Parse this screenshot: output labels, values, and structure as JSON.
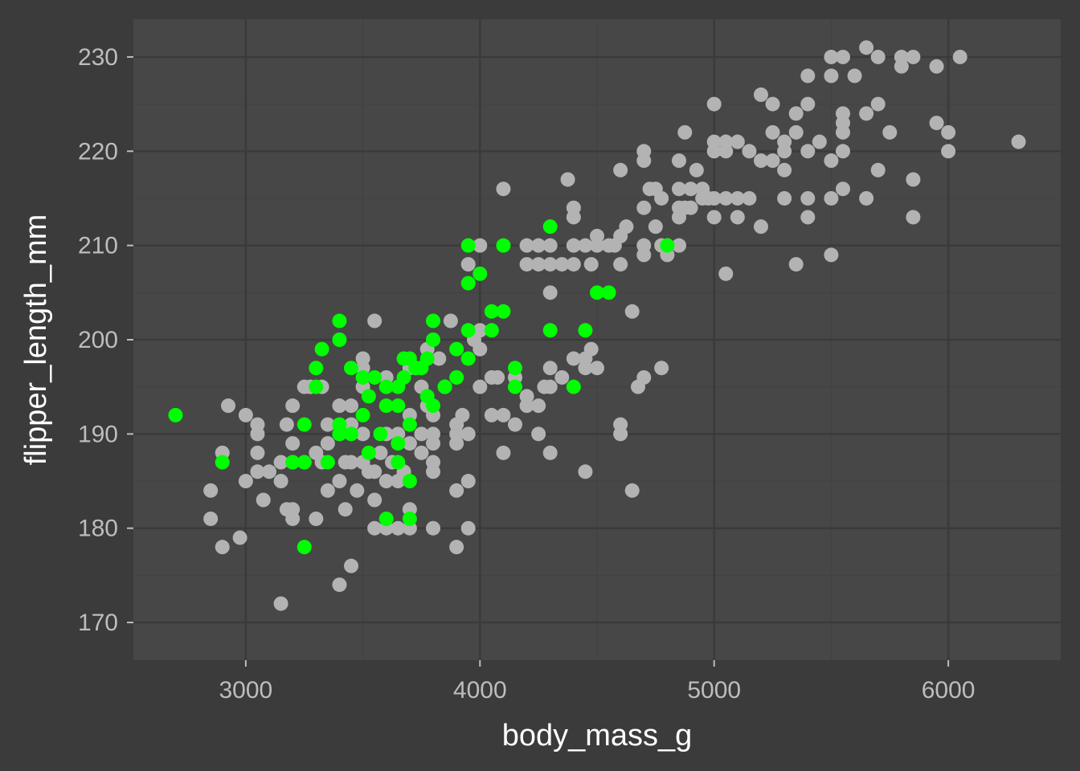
{
  "chart_data": {
    "type": "scatter",
    "xlabel": "body_mass_g",
    "ylabel": "flipper_length_mm",
    "xlim": [
      2520,
      6480
    ],
    "ylim": [
      166,
      234
    ],
    "x_ticks": [
      3000,
      4000,
      5000,
      6000
    ],
    "x_tick_labels": [
      "3000",
      "4000",
      "5000",
      "6000"
    ],
    "y_ticks": [
      170,
      180,
      190,
      200,
      210,
      220,
      230
    ],
    "y_tick_labels": [
      "170",
      "180",
      "190",
      "200",
      "210",
      "220",
      "230"
    ],
    "grid": true,
    "legend": "none",
    "colors": {
      "background": "#3b3b3b",
      "panel": "#474747",
      "grid_major": "#3a3a3a",
      "grid_minor": "#424242",
      "tick": "#bdbdbd",
      "axis_title": "#ffffff",
      "base_points": "#b3b3b3",
      "highlight_points": "#00ff00"
    },
    "series": [
      {
        "color": "#b3b3b3",
        "points": [
          [
            2850,
            184
          ],
          [
            2850,
            181
          ],
          [
            2900,
            188
          ],
          [
            2900,
            178
          ],
          [
            2925,
            193
          ],
          [
            2975,
            179
          ],
          [
            3000,
            192
          ],
          [
            3000,
            185
          ],
          [
            3050,
            191
          ],
          [
            3050,
            190
          ],
          [
            3050,
            188
          ],
          [
            3050,
            186
          ],
          [
            3075,
            183
          ],
          [
            3100,
            186
          ],
          [
            3150,
            187
          ],
          [
            3150,
            185
          ],
          [
            3150,
            172
          ],
          [
            3175,
            182
          ],
          [
            3175,
            191
          ],
          [
            3200,
            182
          ],
          [
            3200,
            181
          ],
          [
            3200,
            187
          ],
          [
            3200,
            189
          ],
          [
            3200,
            193
          ],
          [
            3250,
            195
          ],
          [
            3250,
            187
          ],
          [
            3275,
            195
          ],
          [
            3300,
            188
          ],
          [
            3300,
            181
          ],
          [
            3325,
            187
          ],
          [
            3325,
            195
          ],
          [
            3350,
            184
          ],
          [
            3350,
            189
          ],
          [
            3350,
            191
          ],
          [
            3400,
            193
          ],
          [
            3400,
            190
          ],
          [
            3400,
            185
          ],
          [
            3400,
            174
          ],
          [
            3425,
            187
          ],
          [
            3425,
            182
          ],
          [
            3450,
            176
          ],
          [
            3450,
            193
          ],
          [
            3450,
            191
          ],
          [
            3450,
            187
          ],
          [
            3475,
            184
          ],
          [
            3500,
            198
          ],
          [
            3500,
            197
          ],
          [
            3500,
            195
          ],
          [
            3500,
            190
          ],
          [
            3500,
            187
          ],
          [
            3525,
            186
          ],
          [
            3550,
            183
          ],
          [
            3550,
            186
          ],
          [
            3550,
            180
          ],
          [
            3550,
            202
          ],
          [
            3575,
            188
          ],
          [
            3600,
            180
          ],
          [
            3600,
            185
          ],
          [
            3600,
            190
          ],
          [
            3600,
            196
          ],
          [
            3625,
            187
          ],
          [
            3650,
            190
          ],
          [
            3650,
            185
          ],
          [
            3650,
            180
          ],
          [
            3675,
            186
          ],
          [
            3700,
            180
          ],
          [
            3700,
            182
          ],
          [
            3700,
            189
          ],
          [
            3700,
            192
          ],
          [
            3700,
            197
          ],
          [
            3725,
            197
          ],
          [
            3750,
            195
          ],
          [
            3750,
            188
          ],
          [
            3750,
            190
          ],
          [
            3775,
            193
          ],
          [
            3775,
            199
          ],
          [
            3800,
            192
          ],
          [
            3800,
            190
          ],
          [
            3800,
            189
          ],
          [
            3800,
            187
          ],
          [
            3800,
            186
          ],
          [
            3800,
            180
          ],
          [
            3825,
            198
          ],
          [
            3850,
            195
          ],
          [
            3875,
            202
          ],
          [
            3900,
            191
          ],
          [
            3900,
            190
          ],
          [
            3900,
            189
          ],
          [
            3900,
            184
          ],
          [
            3900,
            178
          ],
          [
            3925,
            192
          ],
          [
            3950,
            208
          ],
          [
            3950,
            190
          ],
          [
            3950,
            185
          ],
          [
            3950,
            180
          ],
          [
            3975,
            200
          ],
          [
            4000,
            210
          ],
          [
            4000,
            201
          ],
          [
            4000,
            199
          ],
          [
            4000,
            195
          ],
          [
            4050,
            196
          ],
          [
            4050,
            192
          ],
          [
            4075,
            196
          ],
          [
            4100,
            216
          ],
          [
            4100,
            192
          ],
          [
            4100,
            188
          ],
          [
            4150,
            191
          ],
          [
            4150,
            196
          ],
          [
            4200,
            210
          ],
          [
            4200,
            208
          ],
          [
            4200,
            194
          ],
          [
            4200,
            193
          ],
          [
            4250,
            193
          ],
          [
            4250,
            208
          ],
          [
            4250,
            210
          ],
          [
            4250,
            190
          ],
          [
            4275,
            195
          ],
          [
            4300,
            210
          ],
          [
            4300,
            208
          ],
          [
            4300,
            205
          ],
          [
            4300,
            195
          ],
          [
            4300,
            188
          ],
          [
            4300,
            197
          ],
          [
            4350,
            208
          ],
          [
            4350,
            196
          ],
          [
            4400,
            213
          ],
          [
            4400,
            210
          ],
          [
            4400,
            208
          ],
          [
            4400,
            198
          ],
          [
            4400,
            214
          ],
          [
            4375,
            217
          ],
          [
            4450,
            210
          ],
          [
            4450,
            198
          ],
          [
            4450,
            197
          ],
          [
            4450,
            186
          ],
          [
            4475,
            208
          ],
          [
            4475,
            199
          ],
          [
            4500,
            211
          ],
          [
            4500,
            210
          ],
          [
            4500,
            197
          ],
          [
            4550,
            210
          ],
          [
            4575,
            210
          ],
          [
            4600,
            218
          ],
          [
            4600,
            211
          ],
          [
            4600,
            208
          ],
          [
            4600,
            191
          ],
          [
            4600,
            190
          ],
          [
            4625,
            212
          ],
          [
            4650,
            203
          ],
          [
            4650,
            184
          ],
          [
            4675,
            195
          ],
          [
            4700,
            210
          ],
          [
            4700,
            209
          ],
          [
            4700,
            214
          ],
          [
            4700,
            220
          ],
          [
            4700,
            219
          ],
          [
            4700,
            196
          ],
          [
            4725,
            216
          ],
          [
            4750,
            212
          ],
          [
            4750,
            216
          ],
          [
            4775,
            210
          ],
          [
            4775,
            215
          ],
          [
            4775,
            197
          ],
          [
            4800,
            210
          ],
          [
            4800,
            209
          ],
          [
            4850,
            216
          ],
          [
            4850,
            214
          ],
          [
            4850,
            213
          ],
          [
            4850,
            210
          ],
          [
            4850,
            219
          ],
          [
            4875,
            214
          ],
          [
            4875,
            222
          ],
          [
            4900,
            214
          ],
          [
            4900,
            216
          ],
          [
            4925,
            218
          ],
          [
            4950,
            216
          ],
          [
            4950,
            215
          ],
          [
            4975,
            215
          ],
          [
            5000,
            221
          ],
          [
            5000,
            220
          ],
          [
            5000,
            215
          ],
          [
            5000,
            213
          ],
          [
            5000,
            225
          ],
          [
            5050,
            220
          ],
          [
            5050,
            215
          ],
          [
            5050,
            221
          ],
          [
            5050,
            207
          ],
          [
            5100,
            215
          ],
          [
            5100,
            213
          ],
          [
            5100,
            221
          ],
          [
            5150,
            215
          ],
          [
            5150,
            220
          ],
          [
            5200,
            226
          ],
          [
            5200,
            219
          ],
          [
            5200,
            212
          ],
          [
            5250,
            225
          ],
          [
            5250,
            222
          ],
          [
            5250,
            219
          ],
          [
            5300,
            221
          ],
          [
            5300,
            220
          ],
          [
            5300,
            215
          ],
          [
            5300,
            218
          ],
          [
            5350,
            224
          ],
          [
            5350,
            222
          ],
          [
            5350,
            208
          ],
          [
            5400,
            228
          ],
          [
            5400,
            225
          ],
          [
            5400,
            220
          ],
          [
            5400,
            215
          ],
          [
            5400,
            213
          ],
          [
            5450,
            221
          ],
          [
            5500,
            230
          ],
          [
            5500,
            228
          ],
          [
            5500,
            219
          ],
          [
            5500,
            215
          ],
          [
            5500,
            209
          ],
          [
            5550,
            230
          ],
          [
            5550,
            224
          ],
          [
            5550,
            223
          ],
          [
            5550,
            222
          ],
          [
            5550,
            220
          ],
          [
            5550,
            216
          ],
          [
            5600,
            228
          ],
          [
            5650,
            231
          ],
          [
            5650,
            224
          ],
          [
            5650,
            215
          ],
          [
            5700,
            230
          ],
          [
            5700,
            225
          ],
          [
            5700,
            218
          ],
          [
            5750,
            222
          ],
          [
            5800,
            230
          ],
          [
            5800,
            229
          ],
          [
            5850,
            230
          ],
          [
            5850,
            217
          ],
          [
            5850,
            213
          ],
          [
            5950,
            229
          ],
          [
            5950,
            223
          ],
          [
            6000,
            222
          ],
          [
            6000,
            220
          ],
          [
            6050,
            230
          ],
          [
            6300,
            221
          ]
        ]
      },
      {
        "color": "#00ff00",
        "points": [
          [
            2700,
            192
          ],
          [
            2900,
            187
          ],
          [
            3200,
            187
          ],
          [
            3250,
            191
          ],
          [
            3250,
            187
          ],
          [
            3250,
            178
          ],
          [
            3300,
            197
          ],
          [
            3300,
            195
          ],
          [
            3325,
            199
          ],
          [
            3350,
            187
          ],
          [
            3400,
            202
          ],
          [
            3400,
            200
          ],
          [
            3400,
            191
          ],
          [
            3400,
            190
          ],
          [
            3450,
            197
          ],
          [
            3450,
            190
          ],
          [
            3500,
            196
          ],
          [
            3500,
            192
          ],
          [
            3525,
            194
          ],
          [
            3525,
            188
          ],
          [
            3550,
            196
          ],
          [
            3575,
            190
          ],
          [
            3600,
            195
          ],
          [
            3600,
            193
          ],
          [
            3600,
            181
          ],
          [
            3650,
            195
          ],
          [
            3650,
            193
          ],
          [
            3650,
            189
          ],
          [
            3650,
            187
          ],
          [
            3675,
            198
          ],
          [
            3675,
            196
          ],
          [
            3700,
            198
          ],
          [
            3700,
            191
          ],
          [
            3700,
            185
          ],
          [
            3700,
            181
          ],
          [
            3725,
            197
          ],
          [
            3750,
            197
          ],
          [
            3775,
            198
          ],
          [
            3775,
            194
          ],
          [
            3800,
            202
          ],
          [
            3800,
            200
          ],
          [
            3800,
            193
          ],
          [
            3850,
            195
          ],
          [
            3900,
            199
          ],
          [
            3900,
            196
          ],
          [
            3950,
            210
          ],
          [
            3950,
            206
          ],
          [
            3950,
            201
          ],
          [
            3950,
            198
          ],
          [
            4000,
            207
          ],
          [
            4050,
            203
          ],
          [
            4050,
            201
          ],
          [
            4100,
            210
          ],
          [
            4100,
            203
          ],
          [
            4150,
            197
          ],
          [
            4150,
            195
          ],
          [
            4300,
            212
          ],
          [
            4300,
            201
          ],
          [
            4400,
            195
          ],
          [
            4450,
            201
          ],
          [
            4500,
            205
          ],
          [
            4550,
            205
          ],
          [
            4800,
            210
          ]
        ]
      }
    ]
  }
}
